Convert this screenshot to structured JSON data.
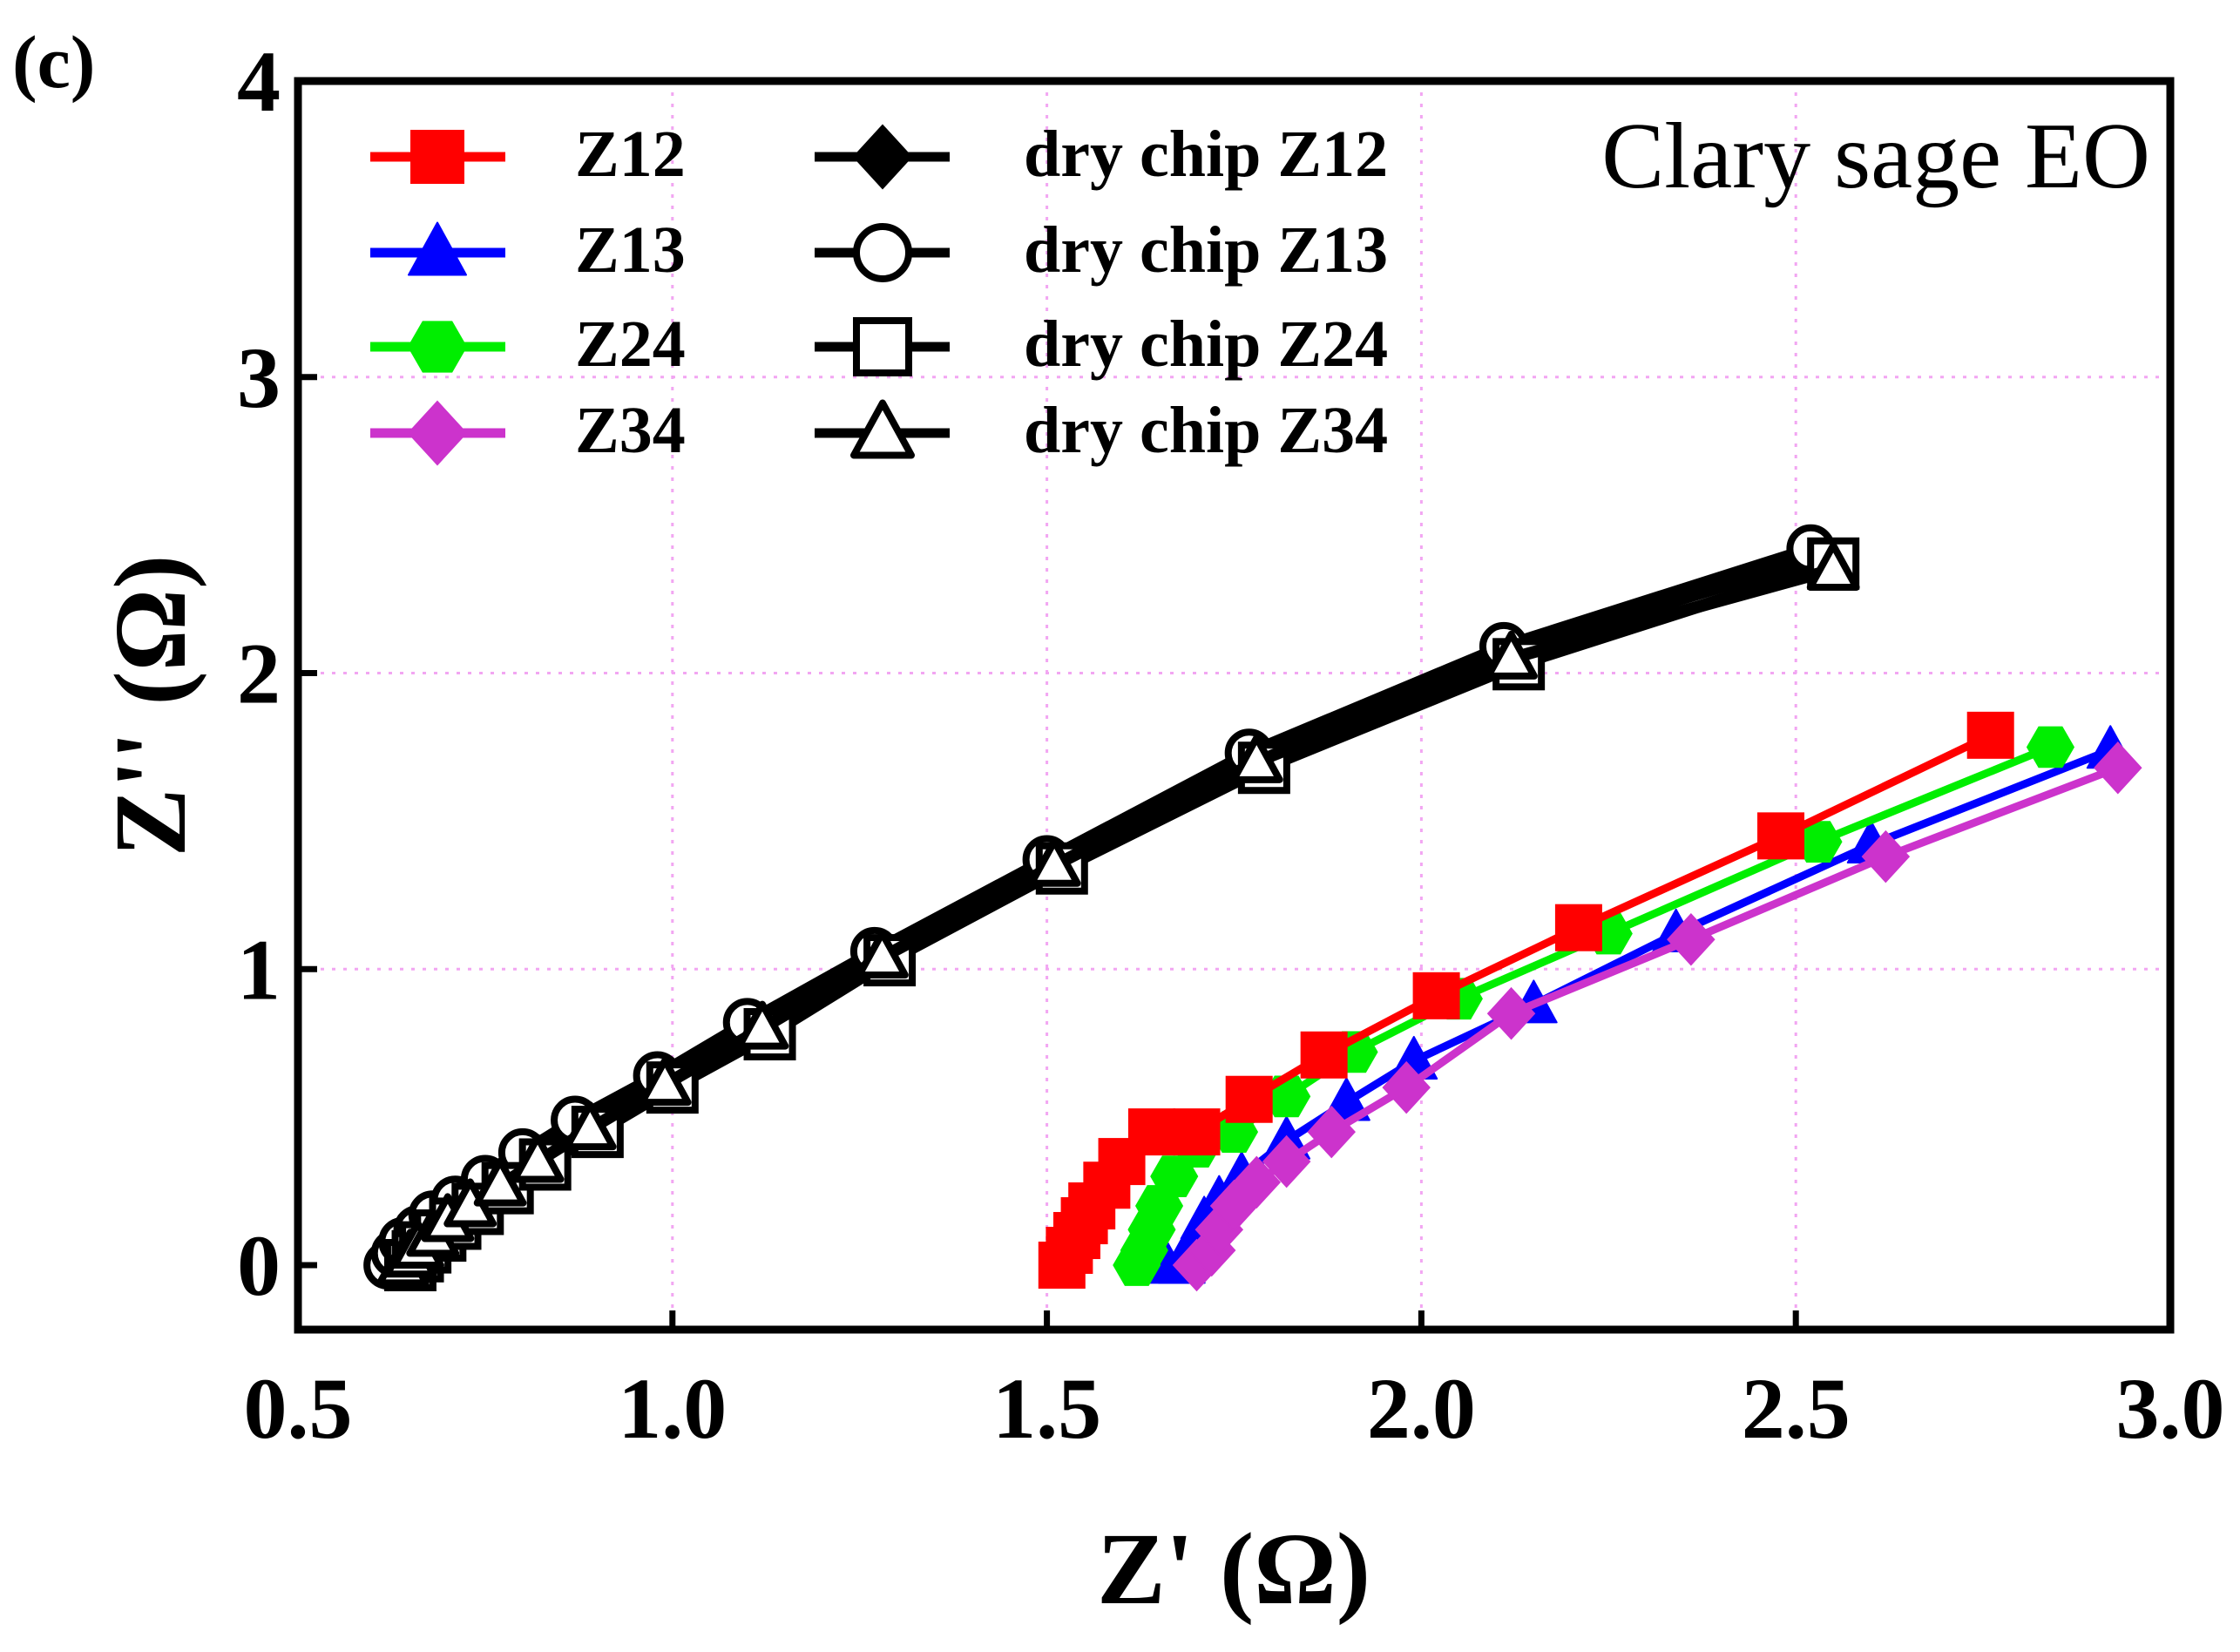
{
  "panel_label": "(c)",
  "chart_data": {
    "type": "line",
    "title": "",
    "annotation": "Clary sage EO",
    "xlabel": "Z' (Ω)",
    "ylabel": "Z'' (Ω)",
    "xlim": [
      0.5,
      3.0
    ],
    "ylim": [
      -0.2,
      4.0
    ],
    "xticks": [
      0.5,
      1.0,
      1.5,
      2.0,
      2.5,
      3.0
    ],
    "xtick_labels": [
      "0.5",
      "1.0",
      "1.5",
      "2.0",
      "2.5",
      "3.0"
    ],
    "yticks": [
      0,
      1,
      2,
      3,
      4
    ],
    "ytick_labels": [
      "0",
      "1",
      "2",
      "3",
      "4"
    ],
    "grid": true,
    "legend_position": "top-left",
    "series": [
      {
        "name": "Z12",
        "color": "#ff0000",
        "marker": "square-filled",
        "x": [
          1.52,
          1.53,
          1.54,
          1.55,
          1.56,
          1.58,
          1.6,
          1.64,
          1.7,
          1.77,
          1.87,
          2.02,
          2.21,
          2.48,
          2.76
        ],
        "y": [
          0.0,
          0.05,
          0.1,
          0.15,
          0.2,
          0.27,
          0.35,
          0.45,
          0.45,
          0.56,
          0.71,
          0.91,
          1.14,
          1.45,
          1.79
        ]
      },
      {
        "name": "Z13",
        "color": "#0000ff",
        "marker": "triangle-filled",
        "x": [
          1.66,
          1.68,
          1.69,
          1.7,
          1.71,
          1.73,
          1.76,
          1.82,
          1.9,
          1.99,
          2.15,
          2.34,
          2.6,
          2.92
        ],
        "y": [
          0.0,
          0.0,
          0.05,
          0.1,
          0.15,
          0.22,
          0.3,
          0.42,
          0.55,
          0.69,
          0.88,
          1.12,
          1.42,
          1.74
        ]
      },
      {
        "name": "Z24",
        "color": "#00ee00",
        "marker": "hexagon-filled",
        "x": [
          1.62,
          1.63,
          1.64,
          1.65,
          1.67,
          1.7,
          1.75,
          1.82,
          1.91,
          2.05,
          2.25,
          2.53,
          2.84
        ],
        "y": [
          0.0,
          0.05,
          0.12,
          0.2,
          0.3,
          0.4,
          0.45,
          0.57,
          0.72,
          0.9,
          1.12,
          1.43,
          1.75
        ]
      },
      {
        "name": "Z34",
        "color": "#cc33cc",
        "marker": "diamond-filled",
        "x": [
          1.7,
          1.72,
          1.73,
          1.75,
          1.78,
          1.82,
          1.88,
          1.98,
          2.12,
          2.36,
          2.62,
          2.93
        ],
        "y": [
          0.0,
          0.05,
          0.12,
          0.2,
          0.28,
          0.35,
          0.45,
          0.6,
          0.85,
          1.1,
          1.38,
          1.68
        ]
      },
      {
        "name": "dry chip Z12",
        "color": "#000000",
        "marker": "diamond-filled",
        "x": [
          0.62,
          0.63,
          0.64,
          0.66,
          0.68,
          0.71,
          0.75,
          0.8,
          0.87,
          0.98,
          1.1,
          1.27,
          1.5,
          1.77,
          2.11,
          2.53
        ],
        "y": [
          0.0,
          0.03,
          0.07,
          0.11,
          0.16,
          0.21,
          0.28,
          0.37,
          0.48,
          0.63,
          0.81,
          1.05,
          1.36,
          1.71,
          2.07,
          2.39
        ]
      },
      {
        "name": "dry chip Z13",
        "color": "#000000",
        "marker": "circle-open",
        "x": [
          0.62,
          0.63,
          0.64,
          0.66,
          0.68,
          0.71,
          0.75,
          0.8,
          0.87,
          0.98,
          1.1,
          1.27,
          1.5,
          1.77,
          2.11,
          2.52
        ],
        "y": [
          0.0,
          0.04,
          0.08,
          0.12,
          0.17,
          0.22,
          0.29,
          0.38,
          0.49,
          0.64,
          0.82,
          1.06,
          1.37,
          1.73,
          2.09,
          2.42
        ]
      },
      {
        "name": "dry chip Z24",
        "color": "#000000",
        "marker": "square-open",
        "x": [
          0.65,
          0.66,
          0.67,
          0.69,
          0.71,
          0.74,
          0.78,
          0.83,
          0.9,
          1.0,
          1.13,
          1.29,
          1.52,
          1.79,
          2.13,
          2.55
        ],
        "y": [
          0.0,
          0.03,
          0.06,
          0.1,
          0.14,
          0.19,
          0.26,
          0.34,
          0.45,
          0.6,
          0.78,
          1.03,
          1.34,
          1.68,
          2.03,
          2.37
        ]
      },
      {
        "name": "dry chip Z34",
        "color": "#000000",
        "marker": "triangle-open",
        "x": [
          0.64,
          0.65,
          0.66,
          0.68,
          0.7,
          0.73,
          0.77,
          0.82,
          0.89,
          0.99,
          1.12,
          1.28,
          1.51,
          1.78,
          2.12,
          2.55
        ],
        "y": [
          0.0,
          0.03,
          0.06,
          0.1,
          0.15,
          0.2,
          0.27,
          0.35,
          0.46,
          0.61,
          0.8,
          1.04,
          1.35,
          1.7,
          2.05,
          2.35
        ]
      }
    ]
  }
}
